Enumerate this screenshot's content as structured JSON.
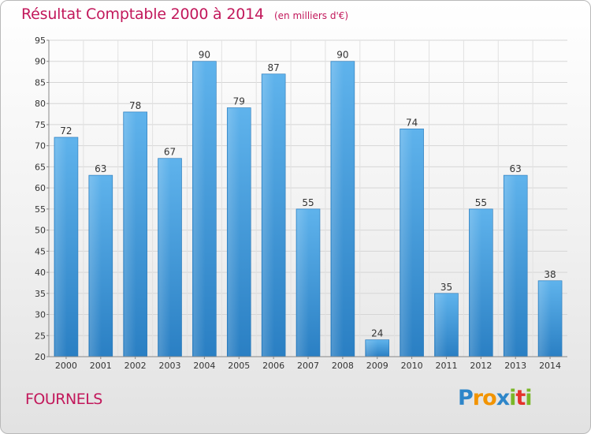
{
  "chart_data": {
    "type": "bar",
    "title": "Résultat Comptable 2000 à 2014",
    "subtitle": "(en milliers d'€)",
    "categories": [
      "2000",
      "2001",
      "2002",
      "2003",
      "2004",
      "2005",
      "2006",
      "2007",
      "2008",
      "2009",
      "2010",
      "2011",
      "2012",
      "2013",
      "2014"
    ],
    "values": [
      72,
      63,
      78,
      67,
      90,
      79,
      87,
      55,
      90,
      24,
      74,
      35,
      55,
      63,
      38
    ],
    "ylim": [
      20,
      95
    ],
    "yticks": [
      20,
      25,
      30,
      35,
      40,
      45,
      50,
      55,
      60,
      65,
      70,
      75,
      80,
      85,
      90,
      95
    ],
    "xlabel": "",
    "ylabel": "",
    "grid": true,
    "bar_color": "#3d95d6"
  },
  "commune": "FOURNELS",
  "logo": {
    "letters": [
      "P",
      "r",
      "o",
      "x",
      "i",
      "t",
      "i"
    ],
    "colors": [
      "#2e86c9",
      "#f29400",
      "#f29400",
      "#2e86c9",
      "#7ab728",
      "#e4322b",
      "#7ab728"
    ]
  }
}
